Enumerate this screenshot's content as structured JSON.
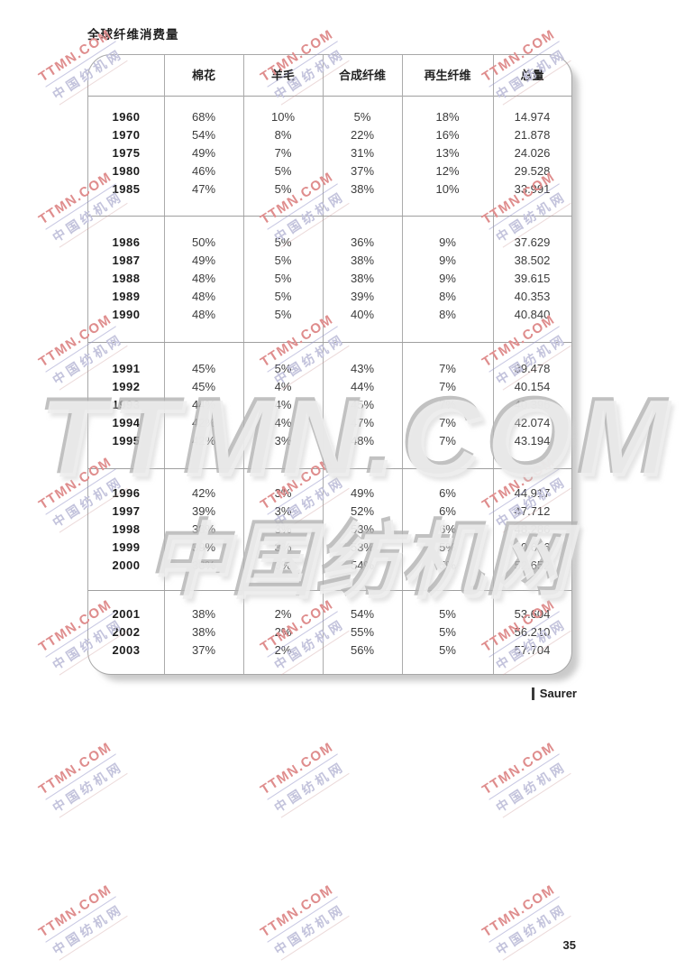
{
  "page": {
    "title": "全球纤维消费量",
    "page_number": "35",
    "source_label": "Saurer"
  },
  "watermark": {
    "small_line1": "TTMN.COM",
    "small_line2": "中国纺机网",
    "big_line1": "TTMN.COM",
    "big_line2": "中国纺机网",
    "accent_red": "#df8d8d",
    "accent_lavender": "#c3c3dc",
    "grid": {
      "cols": [
        36,
        282,
        528
      ],
      "rows": [
        32,
        190,
        348,
        506,
        664,
        822,
        980
      ]
    }
  },
  "table": {
    "headers": [
      "",
      "棉花",
      "羊毛",
      "合成纤维",
      "再生纤维",
      "总量"
    ],
    "groups": [
      {
        "rows": [
          [
            "1960",
            "68%",
            "10%",
            "5%",
            "18%",
            "14.974"
          ],
          [
            "1970",
            "54%",
            "8%",
            "22%",
            "16%",
            "21.878"
          ],
          [
            "1975",
            "49%",
            "7%",
            "31%",
            "13%",
            "24.026"
          ],
          [
            "1980",
            "46%",
            "5%",
            "37%",
            "12%",
            "29.528"
          ],
          [
            "1985",
            "47%",
            "5%",
            "38%",
            "10%",
            "33.991"
          ]
        ]
      },
      {
        "rows": [
          [
            "1986",
            "50%",
            "5%",
            "36%",
            "9%",
            "37.629"
          ],
          [
            "1987",
            "49%",
            "5%",
            "38%",
            "9%",
            "38.502"
          ],
          [
            "1988",
            "48%",
            "5%",
            "38%",
            "9%",
            "39.615"
          ],
          [
            "1989",
            "48%",
            "5%",
            "39%",
            "8%",
            "40.353"
          ],
          [
            "1990",
            "48%",
            "5%",
            "40%",
            "8%",
            "40.840"
          ]
        ]
      },
      {
        "rows": [
          [
            "1991",
            "45%",
            "5%",
            "43%",
            "7%",
            "39.478"
          ],
          [
            "1992",
            "45%",
            "4%",
            "44%",
            "7%",
            "40.154"
          ],
          [
            "1993",
            "44%",
            "4%",
            "45%",
            "7%",
            "40.396"
          ],
          [
            "1994",
            "42%",
            "4%",
            "47%",
            "7%",
            "42.074"
          ],
          [
            "1995",
            "42%",
            "3%",
            "48%",
            "7%",
            "43.194"
          ]
        ]
      },
      {
        "rows": [
          [
            "1996",
            "42%",
            "3%",
            "49%",
            "6%",
            "44.917"
          ],
          [
            "1997",
            "39%",
            "3%",
            "52%",
            "6%",
            "47.712"
          ],
          [
            "1998",
            "38%",
            "3%",
            "53%",
            "6%",
            "48.286"
          ],
          [
            "1999",
            "39%",
            "3%",
            "53%",
            "5%",
            "50.666"
          ],
          [
            "2000",
            "38%",
            "3%",
            "54%",
            "5%",
            "52.652"
          ]
        ]
      },
      {
        "rows": [
          [
            "2001",
            "38%",
            "2%",
            "54%",
            "5%",
            "53.604"
          ],
          [
            "2002",
            "38%",
            "2%",
            "55%",
            "5%",
            "56.210"
          ],
          [
            "2003",
            "37%",
            "2%",
            "56%",
            "5%",
            "57.704"
          ]
        ]
      }
    ]
  }
}
